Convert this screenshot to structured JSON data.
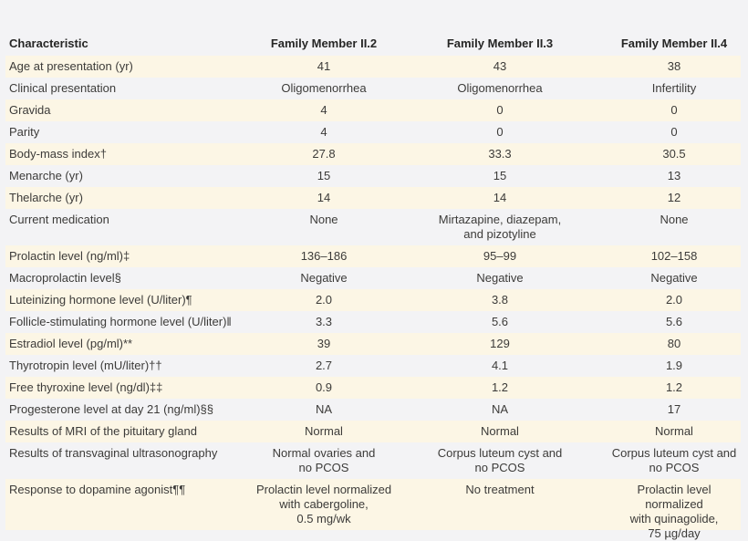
{
  "table": {
    "columns": [
      "Characteristic",
      "Family Member II.2",
      "Family Member II.3",
      "Family Member II.4"
    ],
    "rows": [
      {
        "label": "Age at presentation (yr)",
        "values": [
          "41",
          "43",
          "38"
        ],
        "shaded": true
      },
      {
        "label": "Clinical presentation",
        "values": [
          "Oligomenorrhea",
          "Oligomenorrhea",
          "Infertility"
        ],
        "shaded": false
      },
      {
        "label": "Gravida",
        "values": [
          "4",
          "0",
          "0"
        ],
        "shaded": true
      },
      {
        "label": "Parity",
        "values": [
          "4",
          "0",
          "0"
        ],
        "shaded": false
      },
      {
        "label": "Body-mass index†",
        "values": [
          "27.8",
          "33.3",
          "30.5"
        ],
        "shaded": true
      },
      {
        "label": "Menarche (yr)",
        "values": [
          "15",
          "15",
          "13"
        ],
        "shaded": false
      },
      {
        "label": "Thelarche (yr)",
        "values": [
          "14",
          "14",
          "12"
        ],
        "shaded": true
      },
      {
        "label": "Current medication",
        "values": [
          "None",
          "Mirtazapine, diazepam,\nand pizotyline",
          "None"
        ],
        "shaded": false
      },
      {
        "label": "Prolactin level (ng/ml)‡",
        "values": [
          "136–186",
          "95–99",
          "102–158"
        ],
        "shaded": true
      },
      {
        "label": "Macroprolactin level§",
        "values": [
          "Negative",
          "Negative",
          "Negative"
        ],
        "shaded": false
      },
      {
        "label": "Luteinizing hormone level (U/liter)¶",
        "values": [
          "2.0",
          "3.8",
          "2.0"
        ],
        "shaded": true
      },
      {
        "label": "Follicle-stimulating hormone level (U/liter)‖",
        "values": [
          "3.3",
          "5.6",
          "5.6"
        ],
        "shaded": false
      },
      {
        "label": "Estradiol level (pg/ml)**",
        "values": [
          "39",
          "129",
          "80"
        ],
        "shaded": true
      },
      {
        "label": "Thyrotropin level (mU/liter)††",
        "values": [
          "2.7",
          "4.1",
          "1.9"
        ],
        "shaded": false
      },
      {
        "label": "Free thyroxine level (ng/dl)‡‡",
        "values": [
          "0.9",
          "1.2",
          "1.2"
        ],
        "shaded": true
      },
      {
        "label": "Progesterone level at day 21 (ng/ml)§§",
        "values": [
          "NA",
          "NA",
          "17"
        ],
        "shaded": false
      },
      {
        "label": "Results of MRI of the pituitary gland",
        "values": [
          "Normal",
          "Normal",
          "Normal"
        ],
        "shaded": true
      },
      {
        "label": "Results of transvaginal ultrasonography",
        "values": [
          "Normal ovaries and\nno PCOS",
          "Corpus luteum cyst and\nno PCOS",
          "Corpus luteum cyst and\nno PCOS"
        ],
        "shaded": false
      },
      {
        "label": "Response to dopamine agonist¶¶",
        "values": [
          "Prolactin level normalized\nwith cabergoline,\n0.5 mg/wk",
          "No treatment",
          "Prolactin level normalized\nwith quinagolide,\n75 µg/day"
        ],
        "shaded": true
      }
    ]
  },
  "colors": {
    "background": "#f3f3f5",
    "shaded_row": "#fcf6e5",
    "text": "#3c3b39",
    "header_text": "#262625"
  }
}
